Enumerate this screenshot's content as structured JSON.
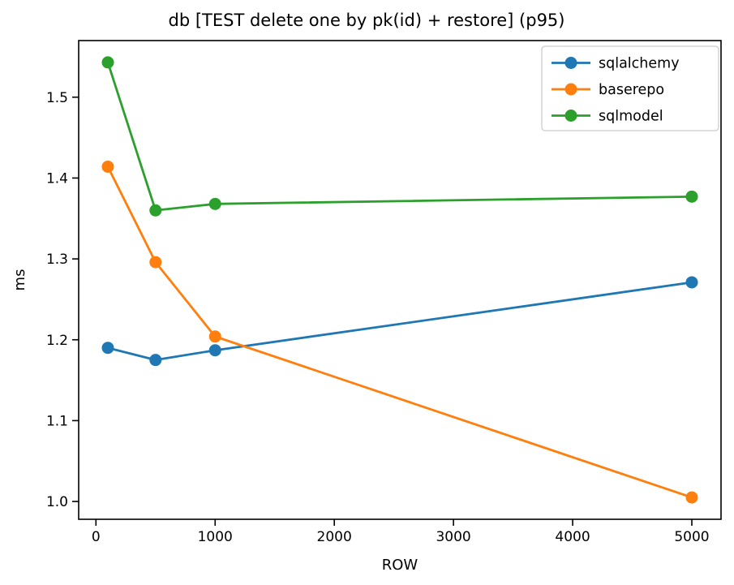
{
  "chart_data": {
    "type": "line",
    "title": "db [TEST delete one by pk(id) + restore] (p95)",
    "xlabel": "ROW",
    "ylabel": "ms",
    "x": [
      100,
      500,
      1000,
      5000
    ],
    "series": [
      {
        "name": "sqlalchemy",
        "color": "#1f77b4",
        "values": [
          1.19,
          1.175,
          1.187,
          1.271
        ]
      },
      {
        "name": "baserepo",
        "color": "#ff7f0e",
        "values": [
          1.414,
          1.296,
          1.204,
          1.005
        ]
      },
      {
        "name": "sqlmodel",
        "color": "#2ca02c",
        "values": [
          1.543,
          1.36,
          1.368,
          1.377
        ]
      }
    ],
    "xticks": {
      "values": [
        0,
        1000,
        2000,
        3000,
        4000,
        5000
      ],
      "labels": [
        "0",
        "1000",
        "2000",
        "3000",
        "4000",
        "5000"
      ]
    },
    "yticks": {
      "values": [
        1.0,
        1.1,
        1.2,
        1.3,
        1.4,
        1.5
      ],
      "labels": [
        "1.0",
        "1.1",
        "1.2",
        "1.3",
        "1.4",
        "1.5"
      ]
    },
    "xlim": [
      -145,
      5245
    ],
    "ylim": [
      0.978,
      1.57
    ],
    "grid": false,
    "marker": "circle",
    "line_width": 2.8,
    "marker_radius": 7.5,
    "legend": {
      "position": "upper right",
      "entries": [
        "sqlalchemy",
        "baserepo",
        "sqlmodel"
      ],
      "border_color": "#cccccc",
      "background": "#ffffff"
    },
    "spine_color": "#000000"
  }
}
